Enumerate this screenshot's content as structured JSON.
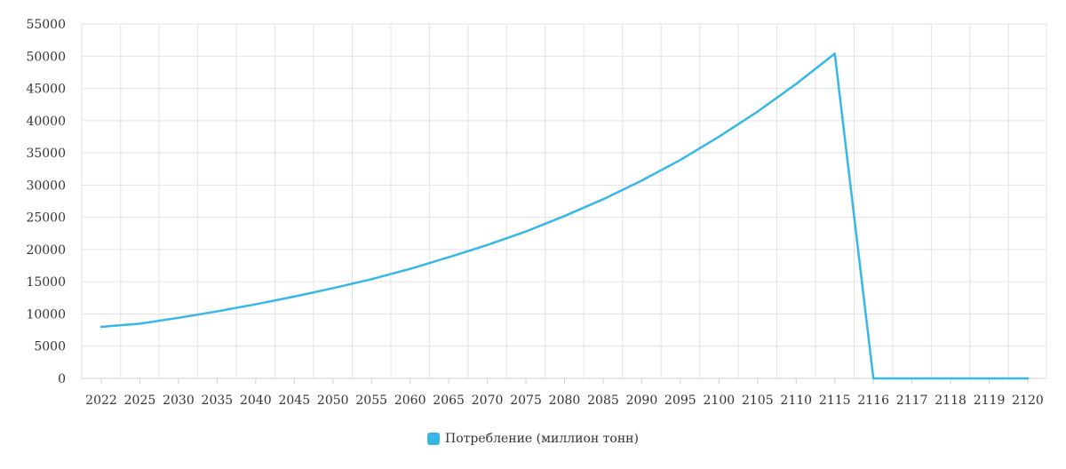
{
  "chart_data": {
    "type": "line",
    "title": "",
    "xlabel": "",
    "ylabel": "",
    "ylim": [
      0,
      55000
    ],
    "y_ticks": [
      "0",
      "5000",
      "10000",
      "15000",
      "20000",
      "25000",
      "30000",
      "35000",
      "40000",
      "45000",
      "50000",
      "55000"
    ],
    "y_tick_values": [
      0,
      5000,
      10000,
      15000,
      20000,
      25000,
      30000,
      35000,
      40000,
      45000,
      50000,
      55000
    ],
    "categories": [
      "2022",
      "2025",
      "2030",
      "2035",
      "2040",
      "2045",
      "2050",
      "2055",
      "2060",
      "2065",
      "2070",
      "2075",
      "2080",
      "2085",
      "2090",
      "2095",
      "2100",
      "2105",
      "2110",
      "2115",
      "2116",
      "2117",
      "2118",
      "2119",
      "2120"
    ],
    "grid": true,
    "legend_position": "bottom-center",
    "series": [
      {
        "name": "Потребление (миллион тонн)",
        "color": "#36b7e8",
        "values": [
          8000,
          8500,
          9400,
          10400,
          11500,
          12700,
          14000,
          15400,
          17000,
          18800,
          20700,
          22800,
          25200,
          27800,
          30700,
          33900,
          37500,
          41400,
          45700,
          50400,
          0,
          0,
          0,
          0,
          0
        ]
      }
    ]
  }
}
